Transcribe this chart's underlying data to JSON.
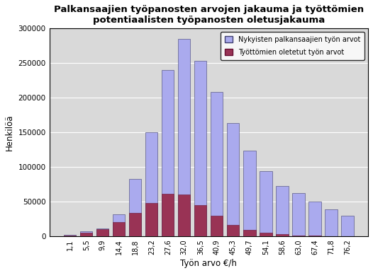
{
  "title": "Palkansaajien työpanosten arvojen jakauma ja työttömien\npotentiaalisten työpanosten oletusjakauma",
  "xlabel": "Työn arvo €/h",
  "ylabel": "Henkilöä",
  "x_labels": [
    "1,1",
    "5,5",
    "9,9",
    "14,4",
    "18,8",
    "23,2",
    "27,6",
    "32,0",
    "36,5",
    "40,9",
    "45,3",
    "49,7",
    "54,1",
    "58,6",
    "63,0",
    "67,4",
    "71,8",
    "76,2"
  ],
  "blue_values": [
    2000,
    7000,
    11000,
    32000,
    83000,
    150000,
    240000,
    285000,
    253000,
    208000,
    163000,
    124000,
    94000,
    72000,
    62000,
    50000,
    39000,
    30000
  ],
  "red_values": [
    500,
    5000,
    10000,
    20000,
    34000,
    48000,
    61000,
    60000,
    45000,
    30000,
    16000,
    9000,
    5000,
    3000,
    1000,
    500,
    0,
    0
  ],
  "blue_color": "#aaaaee",
  "red_color": "#993355",
  "legend_blue": "Nykyisten palkansaajien työn arvot",
  "legend_red": "Työttömien oletetut työn arvot",
  "ylim": [
    0,
    300000
  ],
  "yticks": [
    0,
    50000,
    100000,
    150000,
    200000,
    250000,
    300000
  ],
  "bg_color": "#d9d9d9",
  "fig_bg": "#ffffff",
  "border_color": "#404070"
}
